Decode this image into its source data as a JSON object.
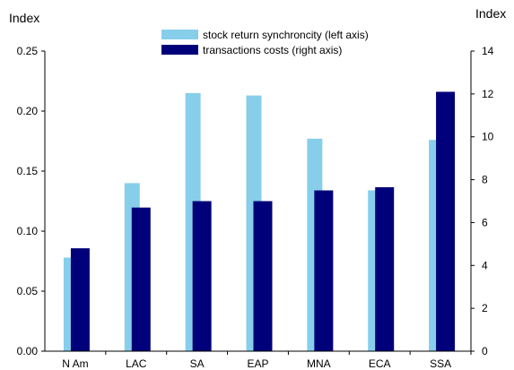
{
  "chart_data": {
    "type": "bar",
    "categories": [
      "N Am",
      "LAC",
      "SA",
      "EAP",
      "MNA",
      "ECA",
      "SSA"
    ],
    "series": [
      {
        "name": "stock return synchroncity (left axis)",
        "axis": "left",
        "color": "#87ceeb",
        "values": [
          0.078,
          0.14,
          0.215,
          0.213,
          0.177,
          0.134,
          0.176
        ]
      },
      {
        "name": "transactions costs (right axis)",
        "axis": "right",
        "color": "#00007a",
        "values": [
          4.8,
          6.7,
          7.0,
          7.0,
          7.5,
          7.65,
          12.1
        ]
      }
    ],
    "ylabel_left": "Index",
    "ylabel_right": "Index",
    "ylim_left": [
      0,
      0.25
    ],
    "ylim_right": [
      0,
      14
    ],
    "yticks_left": [
      "0.00",
      "0.05",
      "0.10",
      "0.15",
      "0.20",
      "0.25"
    ],
    "yticks_right": [
      "0",
      "2",
      "4",
      "6",
      "8",
      "10",
      "12",
      "14"
    ],
    "grid": false,
    "legend_position": "top-center"
  }
}
